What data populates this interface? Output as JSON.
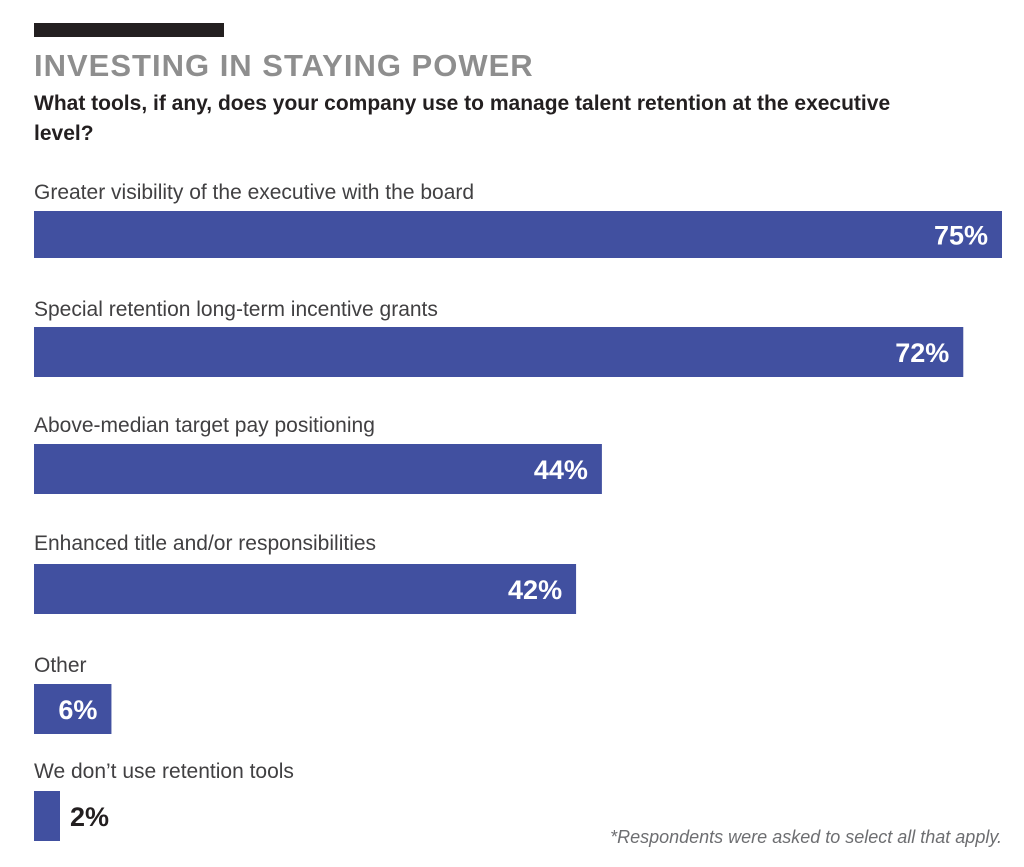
{
  "chart_data": {
    "type": "bar",
    "orientation": "horizontal",
    "title": "INVESTING IN STAYING POWER",
    "subtitle": "What tools, if any, does your company use to manage talent retention at the executive level?",
    "categories": [
      "Greater visibility of the executive with the board",
      "Special retention long-term incentive grants",
      "Above-median target pay positioning",
      "Enhanced title and/or responsibilities",
      "Other",
      "We don’t use retention tools"
    ],
    "values": [
      75,
      72,
      44,
      42,
      6,
      2
    ],
    "value_labels": [
      "75%",
      "72%",
      "44%",
      "42%",
      "6%",
      "2%"
    ],
    "value_unit": "%",
    "xlim": [
      0,
      75
    ],
    "grid": false,
    "legend": "none",
    "bar_color": "#4150a0",
    "footnote": "*Respondents were asked to select all that apply."
  }
}
